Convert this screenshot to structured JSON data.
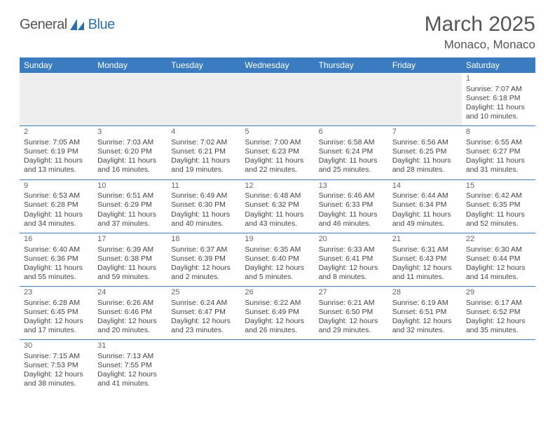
{
  "brand": {
    "name1": "General",
    "name2": "Blue"
  },
  "title": "March 2025",
  "location": "Monaco, Monaco",
  "weekdays": [
    "Sunday",
    "Monday",
    "Tuesday",
    "Wednesday",
    "Thursday",
    "Friday",
    "Saturday"
  ],
  "colors": {
    "headerBg": "#3a7cbf",
    "text": "#444",
    "title": "#555"
  },
  "firstWeek": [
    null,
    null,
    null,
    null,
    null,
    null,
    {
      "d": "1",
      "sr": "Sunrise: 7:07 AM",
      "ss": "Sunset: 6:18 PM",
      "dl1": "Daylight: 11 hours",
      "dl2": "and 10 minutes."
    }
  ],
  "weeks": [
    [
      {
        "d": "2",
        "sr": "Sunrise: 7:05 AM",
        "ss": "Sunset: 6:19 PM",
        "dl1": "Daylight: 11 hours",
        "dl2": "and 13 minutes."
      },
      {
        "d": "3",
        "sr": "Sunrise: 7:03 AM",
        "ss": "Sunset: 6:20 PM",
        "dl1": "Daylight: 11 hours",
        "dl2": "and 16 minutes."
      },
      {
        "d": "4",
        "sr": "Sunrise: 7:02 AM",
        "ss": "Sunset: 6:21 PM",
        "dl1": "Daylight: 11 hours",
        "dl2": "and 19 minutes."
      },
      {
        "d": "5",
        "sr": "Sunrise: 7:00 AM",
        "ss": "Sunset: 6:23 PM",
        "dl1": "Daylight: 11 hours",
        "dl2": "and 22 minutes."
      },
      {
        "d": "6",
        "sr": "Sunrise: 6:58 AM",
        "ss": "Sunset: 6:24 PM",
        "dl1": "Daylight: 11 hours",
        "dl2": "and 25 minutes."
      },
      {
        "d": "7",
        "sr": "Sunrise: 6:56 AM",
        "ss": "Sunset: 6:25 PM",
        "dl1": "Daylight: 11 hours",
        "dl2": "and 28 minutes."
      },
      {
        "d": "8",
        "sr": "Sunrise: 6:55 AM",
        "ss": "Sunset: 6:27 PM",
        "dl1": "Daylight: 11 hours",
        "dl2": "and 31 minutes."
      }
    ],
    [
      {
        "d": "9",
        "sr": "Sunrise: 6:53 AM",
        "ss": "Sunset: 6:28 PM",
        "dl1": "Daylight: 11 hours",
        "dl2": "and 34 minutes."
      },
      {
        "d": "10",
        "sr": "Sunrise: 6:51 AM",
        "ss": "Sunset: 6:29 PM",
        "dl1": "Daylight: 11 hours",
        "dl2": "and 37 minutes."
      },
      {
        "d": "11",
        "sr": "Sunrise: 6:49 AM",
        "ss": "Sunset: 6:30 PM",
        "dl1": "Daylight: 11 hours",
        "dl2": "and 40 minutes."
      },
      {
        "d": "12",
        "sr": "Sunrise: 6:48 AM",
        "ss": "Sunset: 6:32 PM",
        "dl1": "Daylight: 11 hours",
        "dl2": "and 43 minutes."
      },
      {
        "d": "13",
        "sr": "Sunrise: 6:46 AM",
        "ss": "Sunset: 6:33 PM",
        "dl1": "Daylight: 11 hours",
        "dl2": "and 46 minutes."
      },
      {
        "d": "14",
        "sr": "Sunrise: 6:44 AM",
        "ss": "Sunset: 6:34 PM",
        "dl1": "Daylight: 11 hours",
        "dl2": "and 49 minutes."
      },
      {
        "d": "15",
        "sr": "Sunrise: 6:42 AM",
        "ss": "Sunset: 6:35 PM",
        "dl1": "Daylight: 11 hours",
        "dl2": "and 52 minutes."
      }
    ],
    [
      {
        "d": "16",
        "sr": "Sunrise: 6:40 AM",
        "ss": "Sunset: 6:36 PM",
        "dl1": "Daylight: 11 hours",
        "dl2": "and 55 minutes."
      },
      {
        "d": "17",
        "sr": "Sunrise: 6:39 AM",
        "ss": "Sunset: 6:38 PM",
        "dl1": "Daylight: 11 hours",
        "dl2": "and 59 minutes."
      },
      {
        "d": "18",
        "sr": "Sunrise: 6:37 AM",
        "ss": "Sunset: 6:39 PM",
        "dl1": "Daylight: 12 hours",
        "dl2": "and 2 minutes."
      },
      {
        "d": "19",
        "sr": "Sunrise: 6:35 AM",
        "ss": "Sunset: 6:40 PM",
        "dl1": "Daylight: 12 hours",
        "dl2": "and 5 minutes."
      },
      {
        "d": "20",
        "sr": "Sunrise: 6:33 AM",
        "ss": "Sunset: 6:41 PM",
        "dl1": "Daylight: 12 hours",
        "dl2": "and 8 minutes."
      },
      {
        "d": "21",
        "sr": "Sunrise: 6:31 AM",
        "ss": "Sunset: 6:43 PM",
        "dl1": "Daylight: 12 hours",
        "dl2": "and 11 minutes."
      },
      {
        "d": "22",
        "sr": "Sunrise: 6:30 AM",
        "ss": "Sunset: 6:44 PM",
        "dl1": "Daylight: 12 hours",
        "dl2": "and 14 minutes."
      }
    ],
    [
      {
        "d": "23",
        "sr": "Sunrise: 6:28 AM",
        "ss": "Sunset: 6:45 PM",
        "dl1": "Daylight: 12 hours",
        "dl2": "and 17 minutes."
      },
      {
        "d": "24",
        "sr": "Sunrise: 6:26 AM",
        "ss": "Sunset: 6:46 PM",
        "dl1": "Daylight: 12 hours",
        "dl2": "and 20 minutes."
      },
      {
        "d": "25",
        "sr": "Sunrise: 6:24 AM",
        "ss": "Sunset: 6:47 PM",
        "dl1": "Daylight: 12 hours",
        "dl2": "and 23 minutes."
      },
      {
        "d": "26",
        "sr": "Sunrise: 6:22 AM",
        "ss": "Sunset: 6:49 PM",
        "dl1": "Daylight: 12 hours",
        "dl2": "and 26 minutes."
      },
      {
        "d": "27",
        "sr": "Sunrise: 6:21 AM",
        "ss": "Sunset: 6:50 PM",
        "dl1": "Daylight: 12 hours",
        "dl2": "and 29 minutes."
      },
      {
        "d": "28",
        "sr": "Sunrise: 6:19 AM",
        "ss": "Sunset: 6:51 PM",
        "dl1": "Daylight: 12 hours",
        "dl2": "and 32 minutes."
      },
      {
        "d": "29",
        "sr": "Sunrise: 6:17 AM",
        "ss": "Sunset: 6:52 PM",
        "dl1": "Daylight: 12 hours",
        "dl2": "and 35 minutes."
      }
    ],
    [
      {
        "d": "30",
        "sr": "Sunrise: 7:15 AM",
        "ss": "Sunset: 7:53 PM",
        "dl1": "Daylight: 12 hours",
        "dl2": "and 38 minutes."
      },
      {
        "d": "31",
        "sr": "Sunrise: 7:13 AM",
        "ss": "Sunset: 7:55 PM",
        "dl1": "Daylight: 12 hours",
        "dl2": "and 41 minutes."
      },
      null,
      null,
      null,
      null,
      null
    ]
  ]
}
